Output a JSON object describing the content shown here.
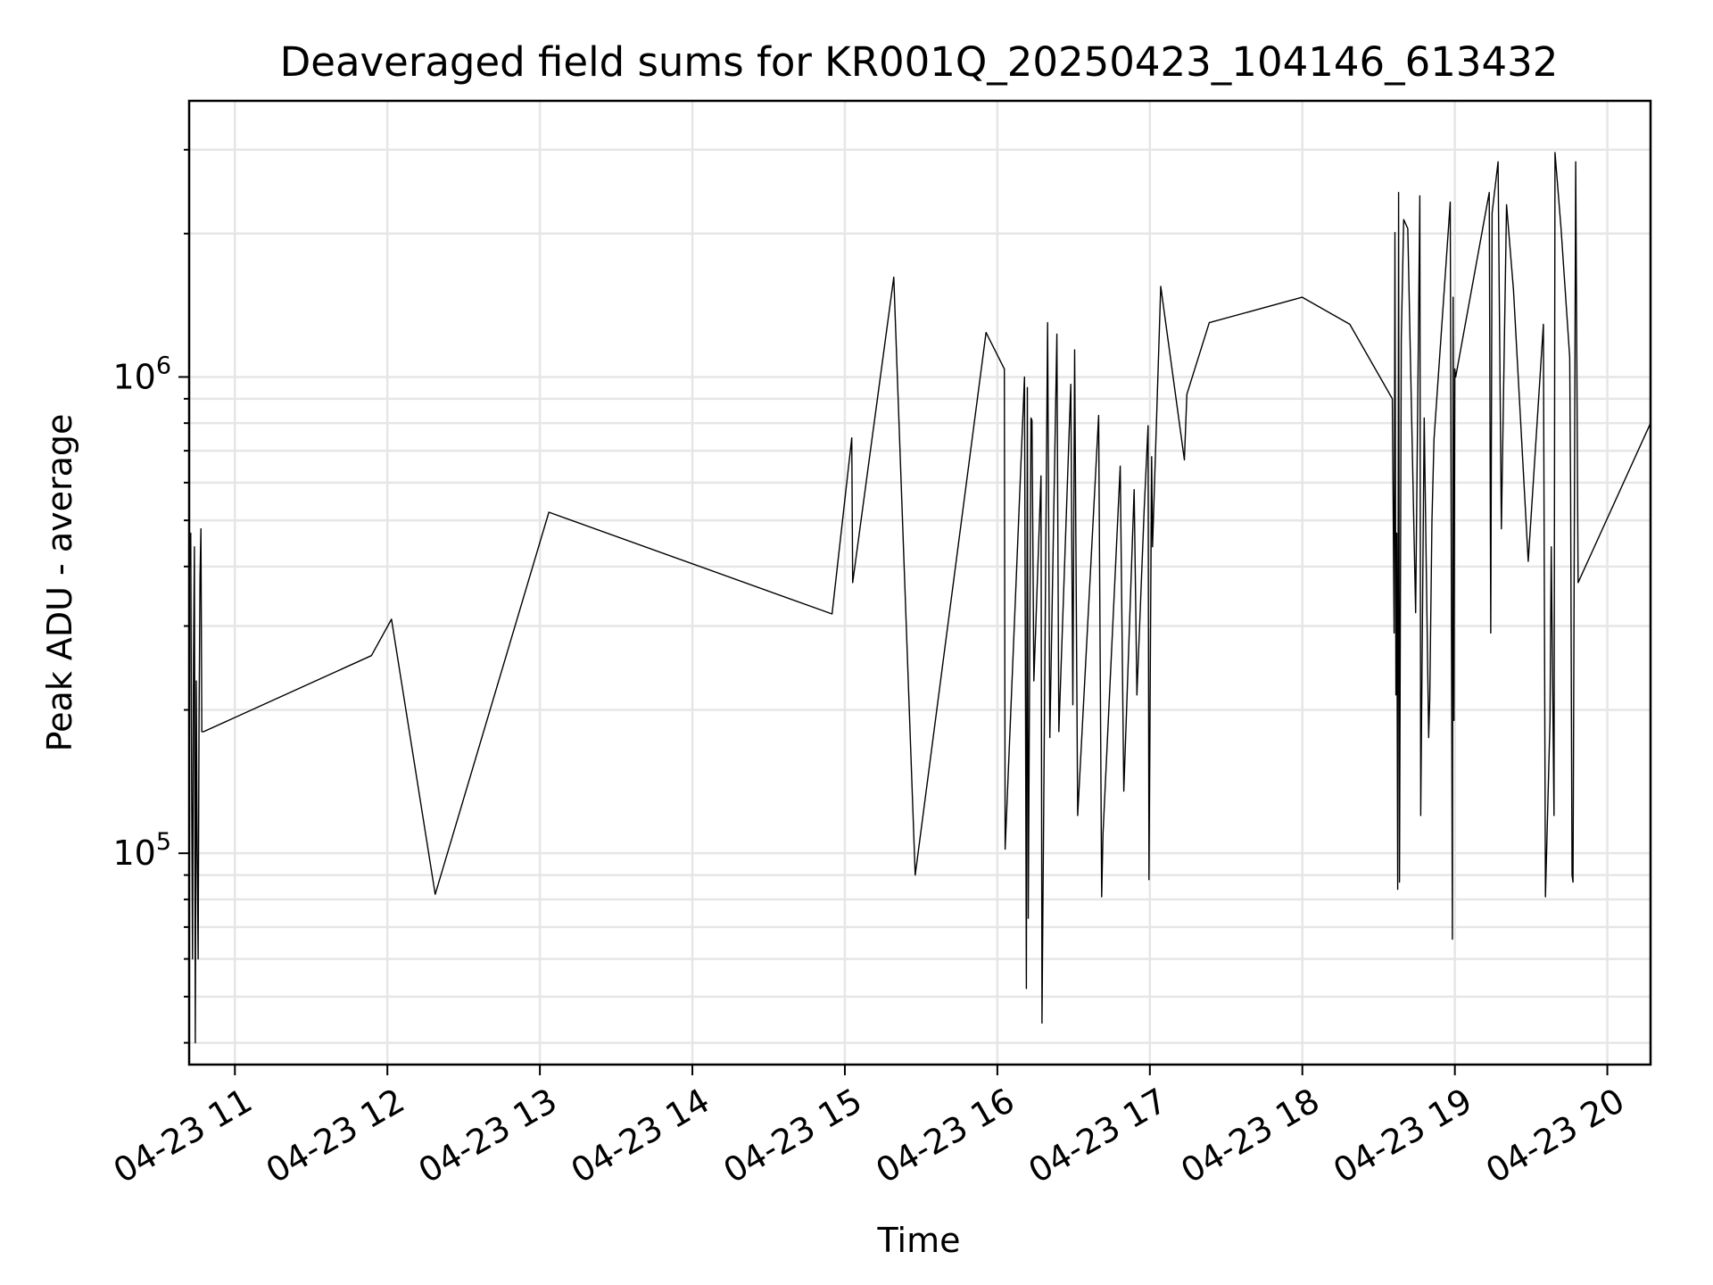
{
  "chart_data": {
    "type": "line",
    "title": "Deaveraged field sums for KR001Q_20250423_104146_613432",
    "xlabel": "Time",
    "ylabel": "Peak ADU - average",
    "x_axis_type": "datetime",
    "xlim": [
      "2025-04-23 10:42",
      "2025-04-23 20:17"
    ],
    "ylim": [
      36000,
      3800000
    ],
    "y_scale": "log",
    "grid": true,
    "grid_minor": true,
    "x_ticks": [
      {
        "value": "2025-04-23 11:00",
        "label": "04-23 11"
      },
      {
        "value": "2025-04-23 12:00",
        "label": "04-23 12"
      },
      {
        "value": "2025-04-23 13:00",
        "label": "04-23 13"
      },
      {
        "value": "2025-04-23 14:00",
        "label": "04-23 14"
      },
      {
        "value": "2025-04-23 15:00",
        "label": "04-23 15"
      },
      {
        "value": "2025-04-23 16:00",
        "label": "04-23 16"
      },
      {
        "value": "2025-04-23 17:00",
        "label": "04-23 17"
      },
      {
        "value": "2025-04-23 18:00",
        "label": "04-23 18"
      },
      {
        "value": "2025-04-23 19:00",
        "label": "04-23 19"
      },
      {
        "value": "2025-04-23 20:00",
        "label": "04-23 20"
      }
    ],
    "y_ticks": [
      {
        "value": 100000,
        "base": "10",
        "exp": "5"
      },
      {
        "value": 1000000,
        "base": "10",
        "exp": "6"
      }
    ],
    "line_color": "#000000",
    "series": [
      {
        "x": [
          "2025-04-23 10:42:15",
          "2025-04-23 10:42:37",
          "2025-04-23 10:42:59",
          "2025-04-23 10:43:21",
          "2025-04-23 10:43:43",
          "2025-04-23 10:44:04",
          "2025-04-23 10:44:26",
          "2025-04-23 10:44:48",
          "2025-04-23 10:45:10",
          "2025-04-23 10:45:32",
          "2025-04-23 10:45:54",
          "2025-04-23 10:46:16",
          "2025-04-23 10:46:38",
          "2025-04-23 10:47:00",
          "2025-04-23 10:47:22",
          "2025-04-23 10:47:44",
          "2025-04-23 11:53:42",
          "2025-04-23 12:01:36",
          "2025-04-23 12:18:50",
          "2025-04-23 13:03:33",
          "2025-04-23 14:54:58",
          "2025-04-23 15:02:44",
          "2025-04-23 15:03:04",
          "2025-04-23 15:19:14",
          "2025-04-23 15:27:40",
          "2025-04-23 15:55:33",
          "2025-04-23 16:02:44",
          "2025-04-23 16:03:04",
          "2025-04-23 16:10:41",
          "2025-04-23 16:11:25",
          "2025-04-23 16:11:47",
          "2025-04-23 16:12:09",
          "2025-04-23 16:13:15",
          "2025-04-23 16:13:37",
          "2025-04-23 16:14:21",
          "2025-04-23 16:17:11",
          "2025-04-23 16:17:33",
          "2025-04-23 16:19:47",
          "2025-04-23 16:20:39",
          "2025-04-23 16:23:26",
          "2025-04-23 16:24:12",
          "2025-04-23 16:28:53",
          "2025-04-23 16:29:43",
          "2025-04-23 16:30:25",
          "2025-04-23 16:31:35",
          "2025-04-23 16:39:50",
          "2025-04-23 16:41:03",
          "2025-04-23 16:41:35",
          "2025-04-23 16:48:21",
          "2025-04-23 16:49:45",
          "2025-04-23 16:53:50",
          "2025-04-23 16:54:55",
          "2025-04-23 16:57:48",
          "2025-04-23 16:59:17",
          "2025-04-23 16:59:39",
          "2025-04-23 17:00:41",
          "2025-04-23 17:01:03",
          "2025-04-23 17:04:17",
          "2025-04-23 17:13:35",
          "2025-04-23 17:14:34",
          "2025-04-23 17:23:22",
          "2025-04-23 17:59:58",
          "2025-04-23 18:18:40",
          "2025-04-23 18:35:25",
          "2025-04-23 18:36:07",
          "2025-04-23 18:36:26",
          "2025-04-23 18:36:48",
          "2025-04-23 18:37:08",
          "2025-04-23 18:37:30",
          "2025-04-23 18:37:52",
          "2025-04-23 18:38:14",
          "2025-04-23 18:38:55",
          "2025-04-23 18:39:52",
          "2025-04-23 18:41:29",
          "2025-04-23 18:44:35",
          "2025-04-23 18:46:13",
          "2025-04-23 18:46:35",
          "2025-04-23 18:47:56",
          "2025-04-23 18:49:42",
          "2025-04-23 18:50:08",
          "2025-04-23 18:50:59",
          "2025-04-23 18:51:49",
          "2025-04-23 18:58:12",
          "2025-04-23 18:59:02",
          "2025-04-23 18:59:19",
          "2025-04-23 18:59:41",
          "2025-04-23 18:59:58",
          "2025-04-23 19:00:20",
          "2025-04-23 19:13:32",
          "2025-04-23 19:14:07",
          "2025-04-23 19:14:40",
          "2025-04-23 19:17:01",
          "2025-04-23 19:18:19",
          "2025-04-23 19:20:20",
          "2025-04-23 19:23:05",
          "2025-04-23 19:28:53",
          "2025-04-23 19:34:51",
          "2025-04-23 19:35:38",
          "2025-04-23 19:37:27",
          "2025-04-23 19:37:55",
          "2025-04-23 19:39:02",
          "2025-04-23 19:39:24",
          "2025-04-23 19:41:48",
          "2025-04-23 19:45:12",
          "2025-04-23 19:45:32",
          "2025-04-23 19:46:07",
          "2025-04-23 19:46:29",
          "2025-04-23 19:47:33",
          "2025-04-23 19:48:29",
          "2025-04-23 20:17:00"
        ],
        "y": [
          400000,
          470000,
          140000,
          60000,
          260000,
          440000,
          40000,
          230000,
          100000,
          60000,
          190000,
          380000,
          480000,
          180000,
          180000,
          180000,
          260000,
          310000,
          82000,
          520000,
          318000,
          745000,
          370000,
          1620000,
          90000,
          1240000,
          1040000,
          102000,
          1000000,
          52000,
          950000,
          73000,
          820000,
          810000,
          230000,
          620000,
          44000,
          1300000,
          175000,
          1230000,
          180000,
          965000,
          205000,
          1140000,
          120000,
          830000,
          81000,
          110000,
          650000,
          135000,
          580000,
          215000,
          530000,
          790000,
          88000,
          680000,
          440000,
          1550000,
          670000,
          920000,
          1300000,
          1470000,
          1290000,
          900000,
          290000,
          2010000,
          215000,
          470000,
          84000,
          2440000,
          87000,
          1200000,
          2140000,
          2050000,
          320000,
          2400000,
          120000,
          820000,
          175000,
          210000,
          500000,
          740000,
          2330000,
          66000,
          1470000,
          190000,
          1040000,
          1000000,
          2440000,
          290000,
          2210000,
          2830000,
          480000,
          2300000,
          1520000,
          410000,
          1290000,
          81000,
          190000,
          440000,
          120000,
          2960000,
          2050000,
          1100000,
          580000,
          90000,
          87000,
          2830000,
          370000,
          800000
        ]
      }
    ]
  }
}
